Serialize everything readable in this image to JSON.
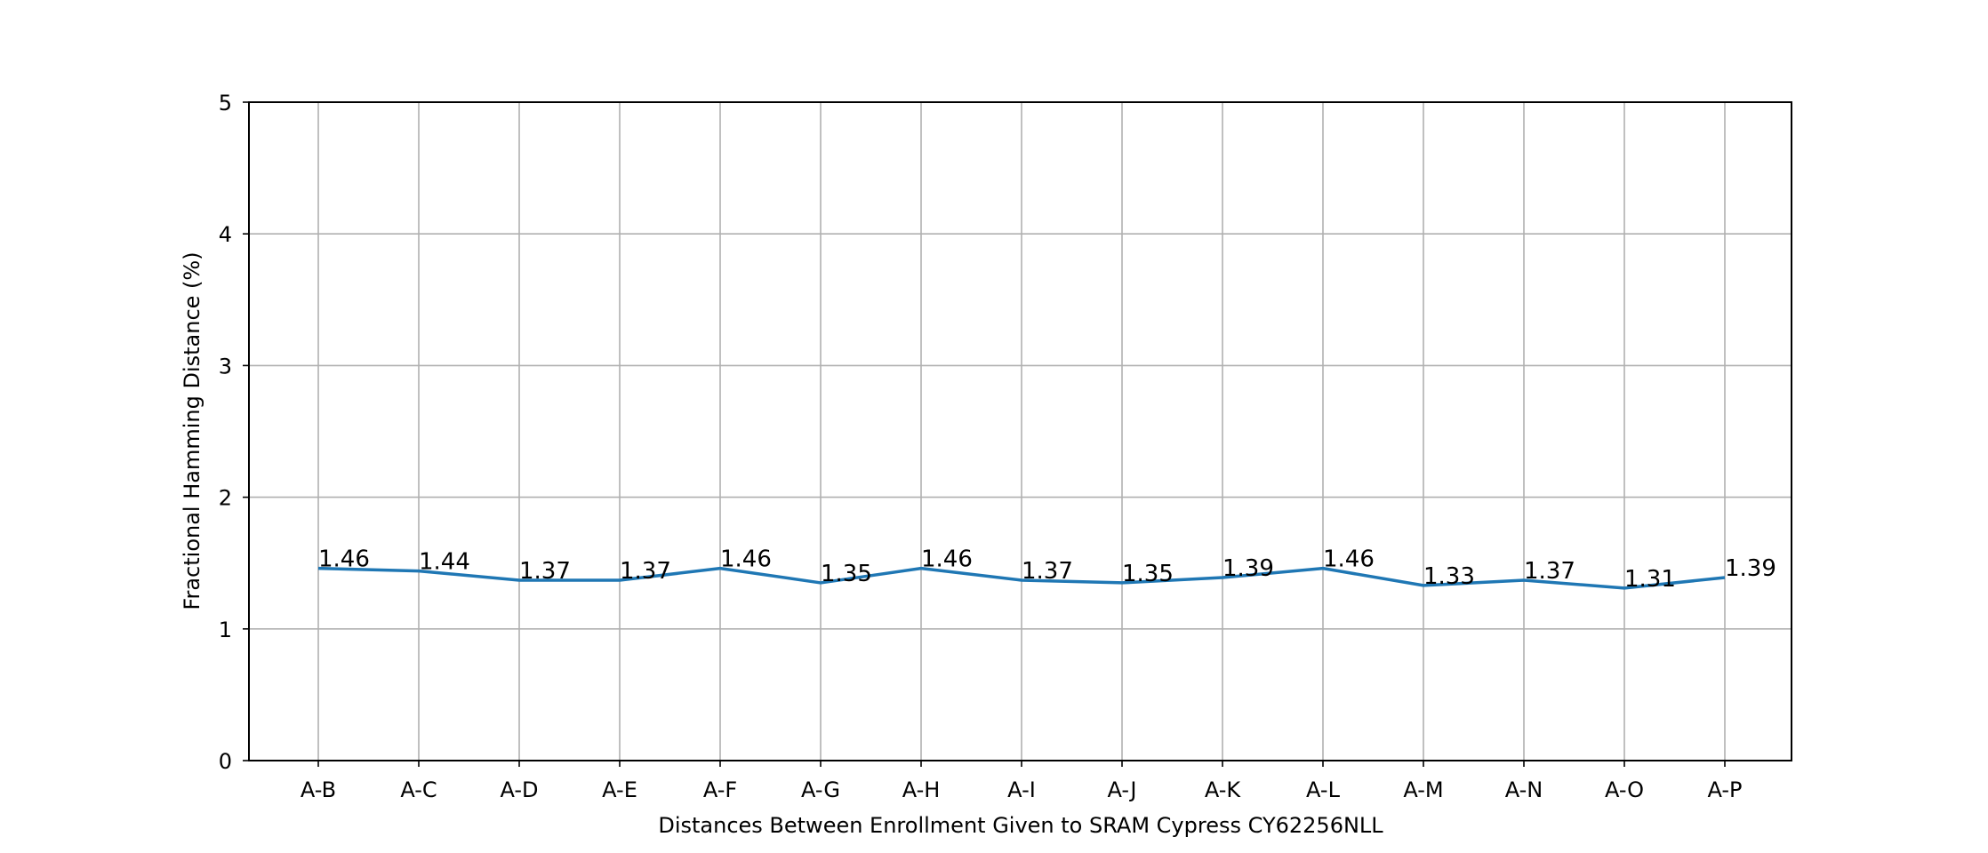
{
  "chart_data": {
    "type": "line",
    "categories": [
      "A-B",
      "A-C",
      "A-D",
      "A-E",
      "A-F",
      "A-G",
      "A-H",
      "A-I",
      "A-J",
      "A-K",
      "A-L",
      "A-M",
      "A-N",
      "A-O",
      "A-P"
    ],
    "series": [
      {
        "values": [
          1.46,
          1.44,
          1.37,
          1.37,
          1.46,
          1.35,
          1.46,
          1.37,
          1.35,
          1.39,
          1.46,
          1.33,
          1.37,
          1.31,
          1.39
        ],
        "color": "#1f77b4"
      }
    ],
    "data_labels": [
      "1.46",
      "1.44",
      "1.37",
      "1.37",
      "1.46",
      "1.35",
      "1.46",
      "1.37",
      "1.35",
      "1.39",
      "1.46",
      "1.33",
      "1.37",
      "1.31",
      "1.39"
    ],
    "xlabel": "Distances Between Enrollment Given to SRAM Cypress CY62256NLL",
    "ylabel": "Fractional Hamming Distance (%)",
    "ylim": [
      0,
      5
    ],
    "yticks": [
      "0",
      "1",
      "2",
      "3",
      "4",
      "5"
    ],
    "grid": true,
    "legend": false
  }
}
